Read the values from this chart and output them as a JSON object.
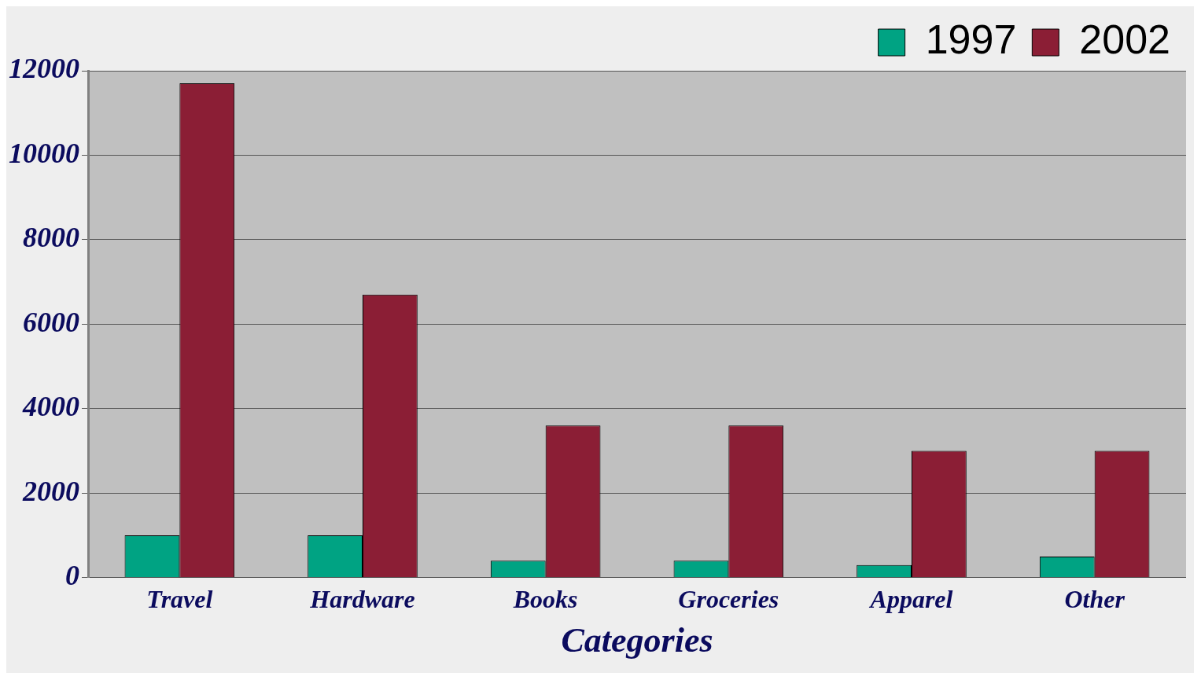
{
  "chart_data": {
    "type": "bar",
    "xlabel": "Categories",
    "categories": [
      "Travel",
      "Hardware",
      "Books",
      "Groceries",
      "Apparel",
      "Other"
    ],
    "series": [
      {
        "name": "1997",
        "color": "#00a383",
        "values": [
          1000,
          1000,
          400,
          400,
          300,
          500
        ]
      },
      {
        "name": "2002",
        "color": "#8b1e35",
        "values": [
          11700,
          6700,
          3600,
          3600,
          3000,
          3000
        ]
      }
    ],
    "ylim": [
      0,
      12000
    ],
    "yticks": [
      0,
      2000,
      4000,
      6000,
      8000,
      10000,
      12000
    ],
    "grid": "y",
    "legend": "top right"
  }
}
